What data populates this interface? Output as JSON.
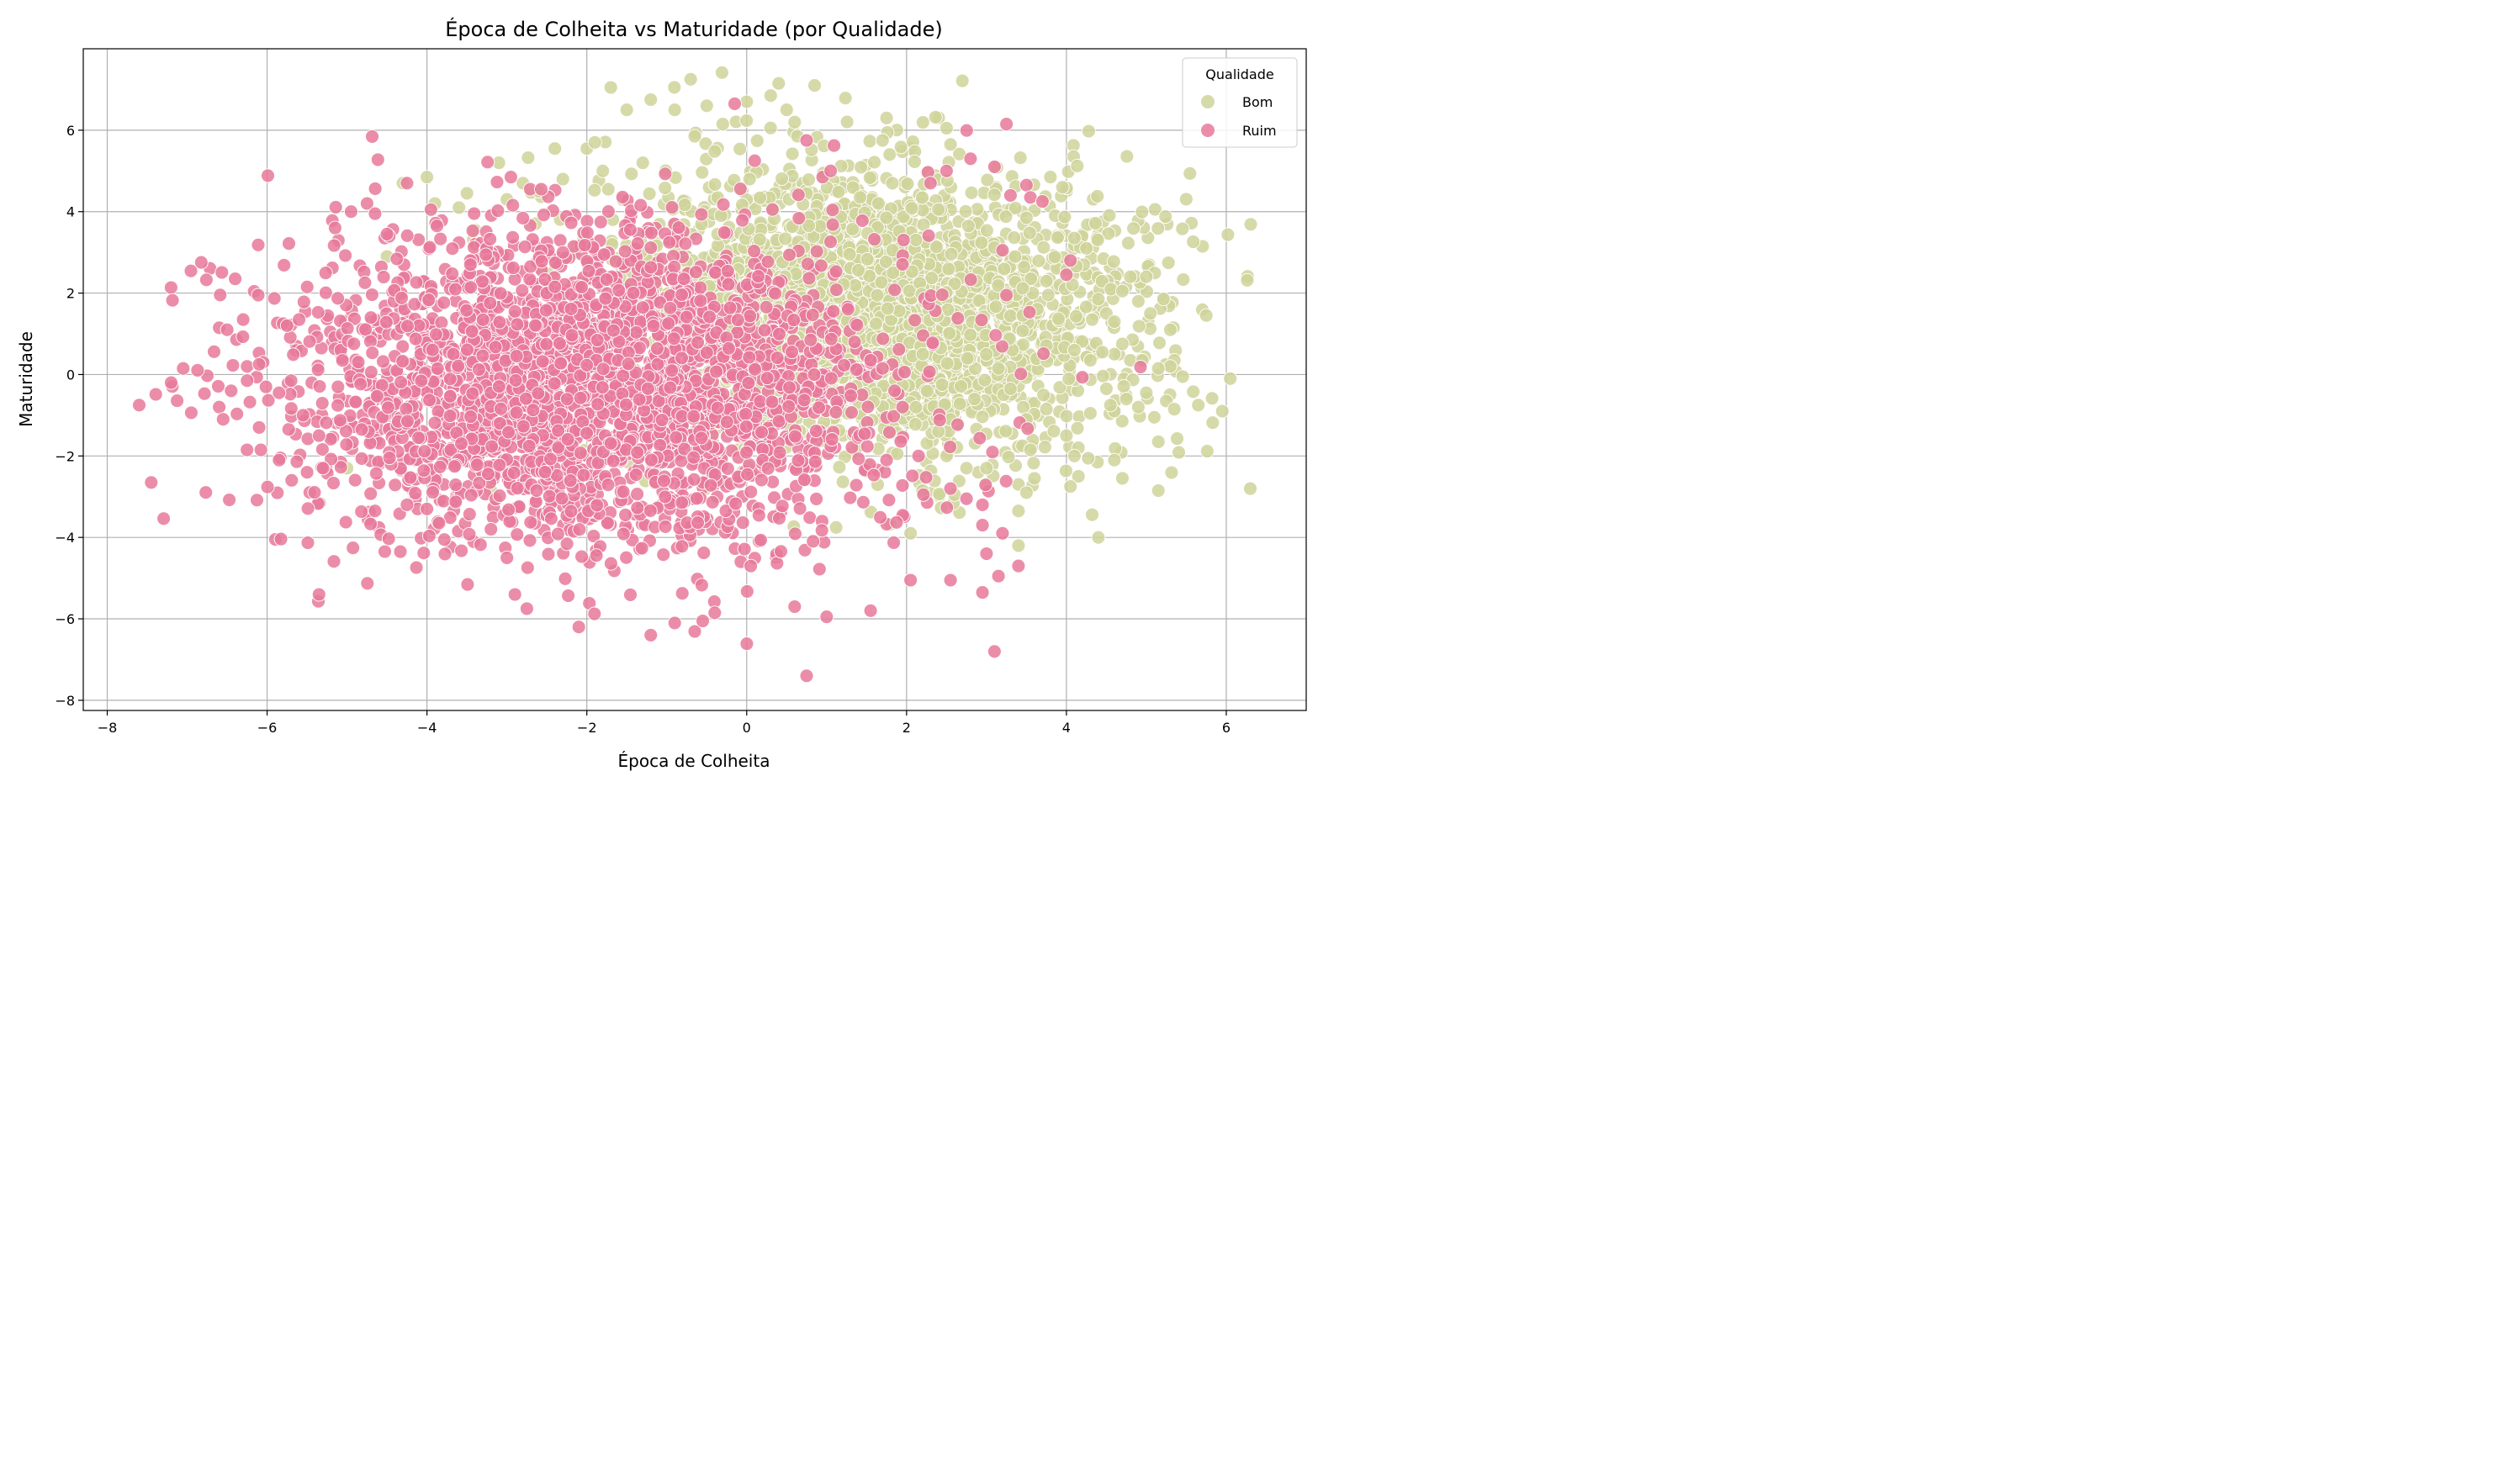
{
  "chart_data": {
    "type": "scatter",
    "title": "Época de Colheita vs Maturidade (por Qualidade)",
    "xlabel": "Época de Colheita",
    "ylabel": "Maturidade",
    "xlim": [
      -8.3,
      7.0
    ],
    "ylim": [
      -8.25,
      8.0
    ],
    "xticks": [
      -8,
      -6,
      -4,
      -2,
      0,
      2,
      4,
      6
    ],
    "yticks": [
      -8,
      -6,
      -4,
      -2,
      0,
      2,
      4,
      6
    ],
    "xtick_labels": [
      "−8",
      "−6",
      "−4",
      "−2",
      "0",
      "2",
      "4",
      "6"
    ],
    "ytick_labels": [
      "−8",
      "−6",
      "−4",
      "−2",
      "0",
      "2",
      "4",
      "6"
    ],
    "grid": true,
    "legend": {
      "title": "Qualidade",
      "position": "top-right"
    },
    "series": [
      {
        "name": "Bom",
        "color": "#cfd39a",
        "cluster": {
          "center": [
            1.6,
            1.5
          ],
          "spread": [
            1.6,
            1.7
          ],
          "count": 2600
        },
        "points": [
          [
            -1.7,
            7.05
          ],
          [
            -0.7,
            7.25
          ],
          [
            0.4,
            7.15
          ],
          [
            0.85,
            7.1
          ],
          [
            -1.5,
            6.5
          ],
          [
            -1.2,
            6.75
          ],
          [
            -0.9,
            6.5
          ],
          [
            -0.5,
            6.6
          ],
          [
            0.0,
            6.7
          ],
          [
            0.3,
            6.85
          ],
          [
            0.5,
            6.5
          ],
          [
            -0.3,
            6.15
          ],
          [
            0.6,
            6.2
          ],
          [
            1.75,
            6.3
          ],
          [
            2.5,
            6.05
          ],
          [
            -2.4,
            5.55
          ],
          [
            -2.0,
            5.55
          ],
          [
            -1.9,
            5.7
          ],
          [
            -0.65,
            5.85
          ],
          [
            1.7,
            5.75
          ],
          [
            -3.1,
            5.2
          ],
          [
            -2.8,
            4.7
          ],
          [
            -2.3,
            4.8
          ],
          [
            -1.3,
            5.2
          ],
          [
            2.55,
            5.65
          ],
          [
            -4.0,
            4.85
          ],
          [
            -3.9,
            4.2
          ],
          [
            -3.5,
            4.45
          ],
          [
            -3.6,
            4.1
          ],
          [
            -4.3,
            4.7
          ],
          [
            -4.5,
            2.9
          ],
          [
            -3.4,
            3.55
          ],
          [
            -3.0,
            4.3
          ],
          [
            -2.6,
            4.5
          ],
          [
            -5.0,
            -2.3
          ],
          [
            -3.4,
            -0.45
          ],
          [
            -3.3,
            -2.45
          ],
          [
            -3.2,
            -2.85
          ],
          [
            -1.8,
            5.0
          ],
          [
            3.8,
            4.85
          ],
          [
            3.95,
            4.6
          ],
          [
            4.25,
            3.1
          ],
          [
            4.1,
            3.35
          ],
          [
            3.5,
            3.85
          ],
          [
            4.4,
            1.85
          ],
          [
            4.7,
            2.05
          ],
          [
            4.8,
            2.4
          ],
          [
            5.0,
            2.4
          ],
          [
            5.05,
            1.5
          ],
          [
            5.3,
            1.1
          ],
          [
            5.75,
            1.45
          ],
          [
            5.35,
            0.35
          ],
          [
            5.3,
            0.2
          ],
          [
            5.15,
            0.15
          ],
          [
            4.5,
            1.5
          ],
          [
            4.9,
            1.8
          ],
          [
            4.6,
            1.3
          ],
          [
            4.7,
            0.75
          ],
          [
            4.6,
            0.5
          ],
          [
            4.45,
            0.55
          ],
          [
            4.8,
            0.35
          ],
          [
            4.95,
            0.35
          ],
          [
            4.1,
            0.6
          ],
          [
            4.3,
            0.35
          ],
          [
            4.5,
            -0.35
          ],
          [
            4.6,
            -0.9
          ],
          [
            4.75,
            -0.6
          ],
          [
            4.9,
            -0.8
          ],
          [
            5.0,
            -0.45
          ],
          [
            5.1,
            -1.05
          ],
          [
            5.25,
            -0.65
          ],
          [
            5.35,
            -0.85
          ],
          [
            5.15,
            -1.65
          ],
          [
            5.65,
            -0.75
          ],
          [
            5.95,
            -0.9
          ],
          [
            6.05,
            -0.1
          ],
          [
            6.3,
            -2.8
          ],
          [
            5.15,
            -2.85
          ],
          [
            4.6,
            -2.1
          ],
          [
            4.7,
            -2.55
          ],
          [
            4.15,
            -1.8
          ],
          [
            4.1,
            -2.0
          ],
          [
            4.15,
            -2.5
          ],
          [
            4.05,
            -2.75
          ],
          [
            4.4,
            -4.0
          ],
          [
            3.4,
            -4.2
          ],
          [
            3.4,
            -3.35
          ],
          [
            3.4,
            -2.7
          ],
          [
            3.5,
            -2.9
          ],
          [
            3.6,
            -2.55
          ],
          [
            3.45,
            -1.75
          ],
          [
            3.55,
            -1.85
          ],
          [
            3.0,
            -2.75
          ],
          [
            3.0,
            -2.3
          ],
          [
            2.75,
            -2.3
          ],
          [
            2.6,
            -2.95
          ],
          [
            2.05,
            -3.9
          ],
          [
            2.2,
            -2.85
          ],
          [
            2.5,
            -2.0
          ],
          [
            3.75,
            -0.85
          ],
          [
            4.0,
            -1.5
          ],
          [
            4.3,
            -0.95
          ],
          [
            4.55,
            -0.75
          ],
          [
            3.5,
            -1.1
          ],
          [
            3.3,
            -0.35
          ],
          [
            2.85,
            -0.6
          ],
          [
            2.55,
            -1.1
          ],
          [
            2.4,
            -1.4
          ]
        ]
      },
      {
        "name": "Ruim",
        "color": "#e8799a",
        "cluster": {
          "center": [
            -1.9,
            -0.3
          ],
          "spread": [
            1.8,
            1.9
          ],
          "count": 2900
        },
        "points": [
          [
            -7.6,
            -0.75
          ],
          [
            -7.45,
            -2.65
          ],
          [
            -7.2,
            -0.2
          ],
          [
            -7.05,
            0.15
          ],
          [
            -6.6,
            1.15
          ],
          [
            -6.5,
            1.1
          ],
          [
            -6.6,
            -0.8
          ],
          [
            -6.55,
            -1.1
          ],
          [
            -6.4,
            2.35
          ],
          [
            -6.3,
            1.35
          ],
          [
            -6.45,
            -0.4
          ],
          [
            -6.25,
            0.2
          ],
          [
            -6.25,
            -0.15
          ],
          [
            -6.05,
            0.3
          ],
          [
            -6.1,
            -1.3
          ],
          [
            -6.1,
            0.25
          ],
          [
            -5.85,
            -2.1
          ],
          [
            -5.85,
            -0.45
          ],
          [
            -5.8,
            1.25
          ],
          [
            -5.75,
            1.2
          ],
          [
            -5.6,
            1.35
          ],
          [
            -5.7,
            -0.15
          ],
          [
            -5.55,
            -1.0
          ],
          [
            -5.5,
            -2.4
          ],
          [
            -5.35,
            -1.5
          ],
          [
            -5.3,
            -2.3
          ],
          [
            -5.35,
            -5.4
          ],
          [
            -5.15,
            3.6
          ],
          [
            -4.75,
            4.2
          ],
          [
            -4.95,
            4.0
          ],
          [
            -4.65,
            3.95
          ],
          [
            -4.5,
            3.45
          ],
          [
            -4.25,
            4.7
          ],
          [
            -3.95,
            4.05
          ],
          [
            -2.95,
            4.85
          ],
          [
            -4.65,
            -3.35
          ],
          [
            -4.25,
            -3.2
          ],
          [
            -4.0,
            -3.3
          ],
          [
            -3.85,
            -3.65
          ],
          [
            -3.2,
            -3.8
          ],
          [
            -3.0,
            -4.5
          ],
          [
            -2.9,
            -5.4
          ],
          [
            -2.75,
            -5.75
          ],
          [
            -2.1,
            -6.2
          ],
          [
            -1.2,
            -6.4
          ],
          [
            -0.9,
            -6.1
          ],
          [
            -0.55,
            -6.05
          ],
          [
            -0.4,
            -5.85
          ],
          [
            0.6,
            -5.7
          ],
          [
            0.75,
            -7.4
          ],
          [
            1.0,
            -5.95
          ],
          [
            1.55,
            -5.8
          ],
          [
            2.05,
            -5.05
          ],
          [
            2.55,
            -5.05
          ],
          [
            2.95,
            -5.35
          ],
          [
            3.1,
            -6.8
          ],
          [
            3.15,
            -4.95
          ],
          [
            3.2,
            -3.9
          ],
          [
            3.4,
            -4.7
          ],
          [
            3.0,
            -4.4
          ],
          [
            2.95,
            -3.7
          ],
          [
            2.95,
            -3.2
          ],
          [
            3.25,
            6.15
          ],
          [
            3.1,
            5.1
          ],
          [
            2.8,
            5.3
          ],
          [
            2.5,
            5.0
          ],
          [
            3.3,
            4.4
          ],
          [
            3.5,
            4.65
          ],
          [
            3.55,
            4.35
          ],
          [
            3.7,
            4.25
          ],
          [
            2.3,
            4.7
          ],
          [
            0.95,
            4.85
          ],
          [
            0.1,
            5.25
          ],
          [
            -0.15,
            6.65
          ],
          [
            0.75,
            5.75
          ],
          [
            1.05,
            5.0
          ],
          [
            4.0,
            2.45
          ],
          [
            4.05,
            2.8
          ],
          [
            3.2,
            3.05
          ],
          [
            3.25,
            1.95
          ],
          [
            0.8,
            0.85
          ],
          [
            1.35,
            0.8
          ],
          [
            1.55,
            0.35
          ],
          [
            1.7,
            0.15
          ],
          [
            1.85,
            -0.4
          ],
          [
            1.95,
            -0.8
          ],
          [
            2.15,
            -2.0
          ],
          [
            2.55,
            -2.8
          ],
          [
            2.75,
            -3.05
          ],
          [
            1.75,
            -2.1
          ]
        ]
      }
    ]
  }
}
